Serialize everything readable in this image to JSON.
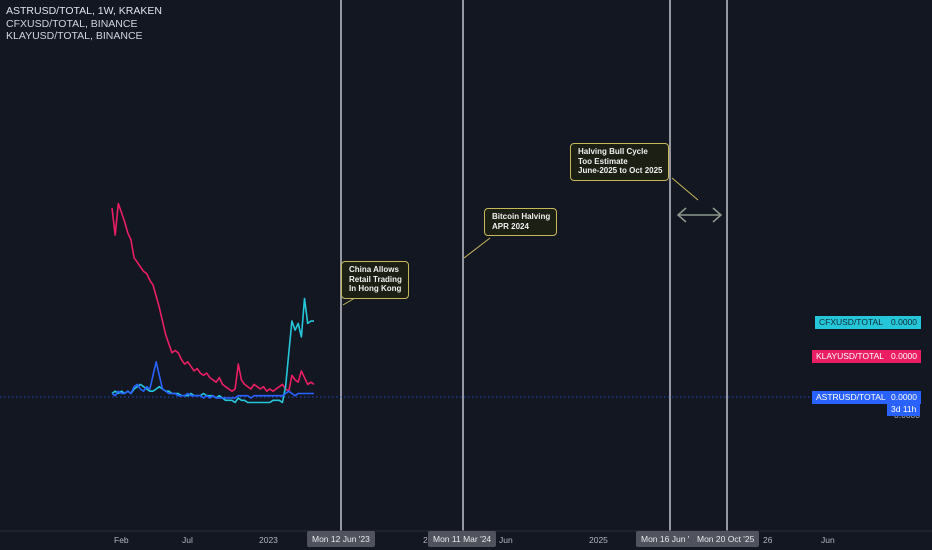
{
  "legend": {
    "main": "ASTRUSD/TOTAL, 1W, KRAKEN",
    "series2": "CFXUSD/TOTAL, BINANCE",
    "series3": "KLAYUSD/TOTAL, BINANCE"
  },
  "colors": {
    "background": "#131722",
    "cfx": "#26c6da",
    "klay": "#e91e63",
    "astr": "#2962ff",
    "vline": "#9598a1",
    "callout_border": "#c9b85a",
    "arrow": "#8d9a8d"
  },
  "annotations": {
    "china": [
      "China Allows",
      "Retail Trading",
      "In Hong Kong"
    ],
    "halving": [
      "Bitcoin Halving",
      "APR 2024"
    ],
    "bull": [
      "Halving Bull Cycle",
      "Too Estimate",
      "June-2025 to Oct 2025"
    ]
  },
  "price_tags": {
    "cfx_label": "CFXUSD/TOTAL",
    "cfx_value": "0.0000",
    "klay_label": "KLAYUSD/TOTAL",
    "klay_value": "0.0000",
    "astr_label": "ASTRUSD/TOTAL",
    "astr_value": "0.0000",
    "countdown": "3d 11h",
    "ghost_value": "0.0000"
  },
  "x_axis": {
    "ticks": [
      "Feb",
      "Jul",
      "2023",
      "20",
      "Jun",
      "2025",
      "26",
      "Jun"
    ],
    "date_tags": [
      "Mon 12 Jun '23",
      "Mon 11 Mar '24",
      "Mon 16 Jun '",
      "Mon 20 Oct '25"
    ]
  },
  "chart_data": {
    "type": "line",
    "x_unit": "weekly bars (2022 to 2023)",
    "series": [
      {
        "name": "KLAYUSD/TOTAL",
        "color": "#e91e63",
        "values": [
          0.84,
          0.72,
          0.86,
          0.82,
          0.78,
          0.73,
          0.7,
          0.62,
          0.6,
          0.58,
          0.56,
          0.55,
          0.52,
          0.5,
          0.45,
          0.4,
          0.34,
          0.28,
          0.24,
          0.2,
          0.21,
          0.2,
          0.17,
          0.15,
          0.16,
          0.14,
          0.12,
          0.13,
          0.11,
          0.1,
          0.11,
          0.09,
          0.08,
          0.07,
          0.09,
          0.06,
          0.05,
          0.04,
          0.03,
          0.04,
          0.15,
          0.08,
          0.06,
          0.05,
          0.04,
          0.06,
          0.05,
          0.04,
          0.05,
          0.03,
          0.04,
          0.03,
          0.04,
          0.05,
          0.06,
          0.04,
          0.03,
          0.1,
          0.08,
          0.07,
          0.12,
          0.09,
          0.06,
          0.07,
          0.06
        ]
      },
      {
        "name": "CFXUSD/TOTAL",
        "color": "#26c6da",
        "values": [
          0.02,
          0.03,
          0.02,
          0.03,
          0.02,
          0.03,
          0.02,
          0.04,
          0.05,
          0.06,
          0.05,
          0.04,
          0.03,
          0.03,
          0.04,
          0.05,
          0.04,
          0.03,
          0.03,
          0.02,
          0.02,
          0.02,
          0.01,
          0.01,
          0.01,
          0.02,
          0.01,
          0.01,
          0.01,
          0.02,
          0.01,
          0.01,
          0.01,
          0.0,
          0.01,
          0.0,
          -0.01,
          -0.01,
          -0.01,
          -0.02,
          0.0,
          -0.01,
          -0.01,
          -0.02,
          -0.02,
          -0.02,
          -0.02,
          -0.02,
          -0.02,
          -0.02,
          -0.02,
          -0.01,
          -0.01,
          -0.01,
          -0.02,
          0.05,
          0.2,
          0.34,
          0.3,
          0.33,
          0.27,
          0.44,
          0.33,
          0.34,
          0.34
        ]
      },
      {
        "name": "ASTRUSD/TOTAL",
        "color": "#2962ff",
        "values": [
          0.02,
          0.01,
          0.03,
          0.02,
          0.02,
          0.03,
          0.02,
          0.05,
          0.06,
          0.04,
          0.03,
          0.05,
          0.04,
          0.1,
          0.16,
          0.1,
          0.04,
          0.03,
          0.02,
          0.02,
          0.02,
          0.01,
          0.01,
          0.01,
          0.02,
          0.01,
          0.01,
          0.01,
          0.01,
          0.0,
          0.01,
          0.0,
          0.01,
          0.0,
          0.0,
          0.0,
          0.0,
          0.0,
          0.0,
          0.0,
          0.01,
          0.01,
          0.01,
          0.01,
          0.0,
          0.01,
          0.01,
          0.01,
          0.01,
          0.01,
          0.01,
          0.01,
          0.01,
          0.01,
          0.01,
          0.02,
          0.03,
          0.02,
          0.01,
          0.02,
          0.02,
          0.02,
          0.02,
          0.02,
          0.02
        ]
      }
    ],
    "grid": false,
    "legend_position": "top-left"
  }
}
